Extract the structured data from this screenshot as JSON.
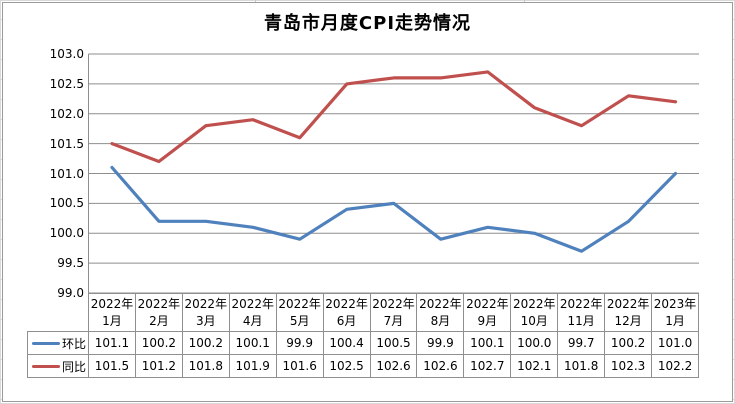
{
  "chart_data": {
    "type": "line",
    "title": "青岛市月度CPI走势情况",
    "categories": [
      "2022年1月",
      "2022年2月",
      "2022年3月",
      "2022年4月",
      "2022年5月",
      "2022年6月",
      "2022年7月",
      "2022年8月",
      "2022年9月",
      "2022年10月",
      "2022年11月",
      "2022年12月",
      "2023年1月"
    ],
    "series": [
      {
        "name": "环比",
        "color": "#4F81BD",
        "values": [
          101.1,
          100.2,
          100.2,
          100.1,
          99.9,
          100.4,
          100.5,
          99.9,
          100.1,
          100.0,
          99.7,
          100.2,
          101.0
        ]
      },
      {
        "name": "同比",
        "color": "#C0504D",
        "values": [
          101.5,
          101.2,
          101.8,
          101.9,
          101.6,
          102.5,
          102.6,
          102.6,
          102.7,
          102.1,
          101.8,
          102.3,
          102.2
        ]
      }
    ],
    "ylim": [
      99.0,
      103.0
    ],
    "yticks": [
      "103.0",
      "102.5",
      "102.0",
      "101.5",
      "101.0",
      "100.5",
      "100.0",
      "99.5",
      "99.0"
    ],
    "grid": true,
    "gridline_color": "#8e8e8e",
    "legend_position": "data-table-left"
  }
}
